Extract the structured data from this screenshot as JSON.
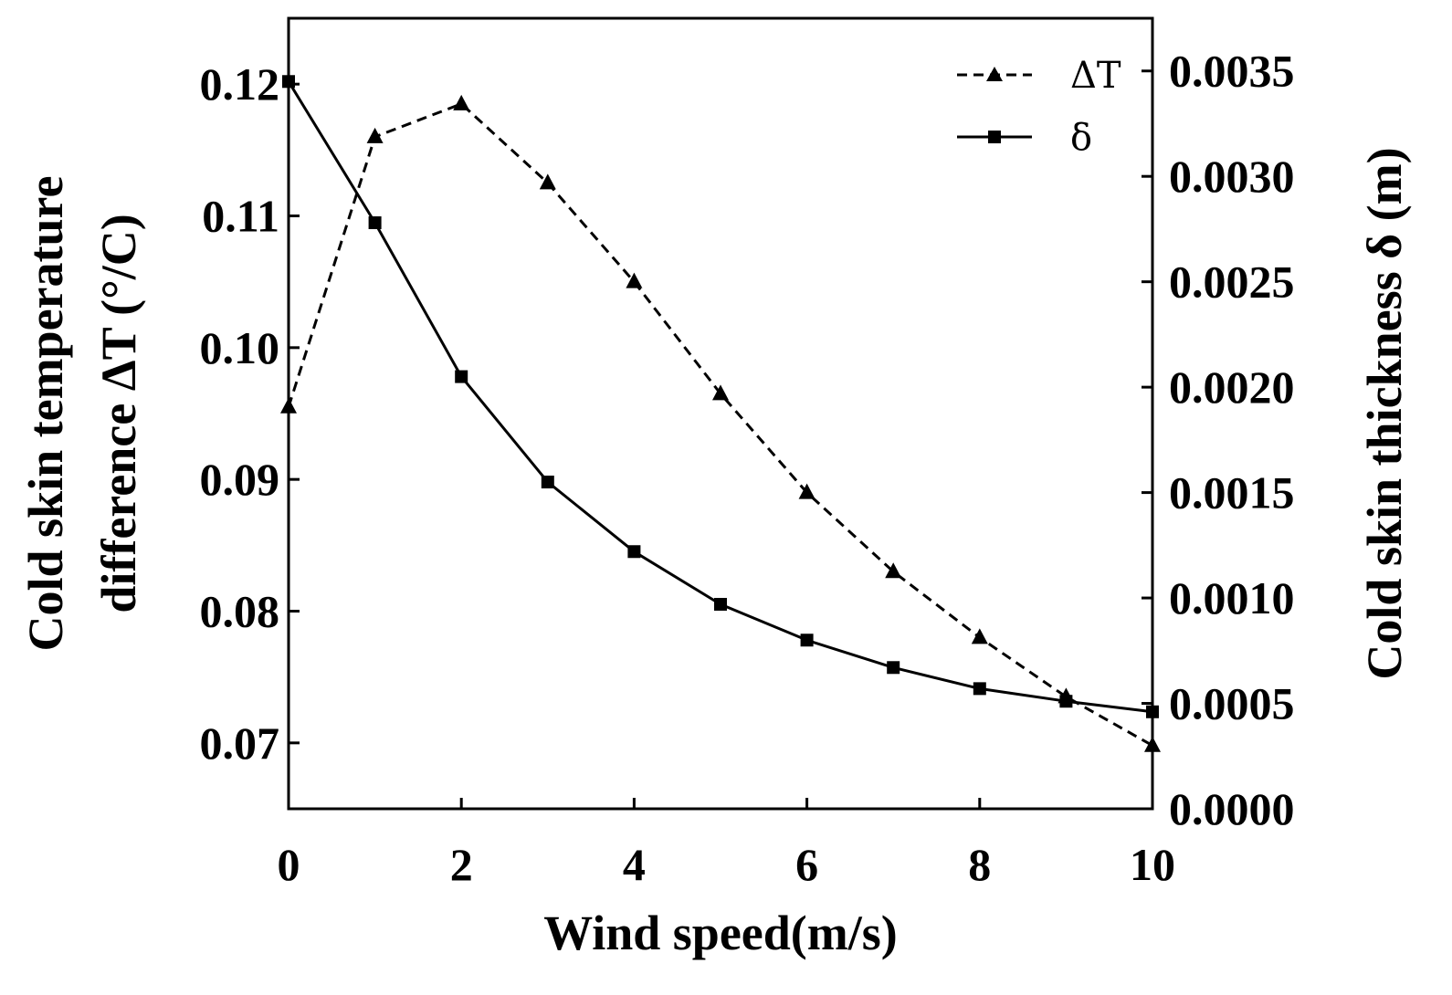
{
  "chart_data": {
    "type": "line",
    "x": [
      0,
      1,
      2,
      3,
      4,
      5,
      6,
      7,
      8,
      9,
      10
    ],
    "xlabel": "Wind speed(m/s)",
    "xlim": [
      0,
      10
    ],
    "xticks": [
      "0",
      "2",
      "4",
      "6",
      "8",
      "10"
    ],
    "ylabel_left_line1": "Cold skin temperature",
    "ylabel_left_line2": "difference  ΔT (°/C)",
    "ylim_left": [
      0.065,
      0.125
    ],
    "yticks_left": [
      "0.07",
      "0.08",
      "0.09",
      "0.10",
      "0.11",
      "0.12"
    ],
    "ylabel_right": "Cold skin thickness δ (m)",
    "ylim_right": [
      0.0,
      0.00375
    ],
    "yticks_right": [
      "0.0000",
      "0.0005",
      "0.0010",
      "0.0015",
      "0.0020",
      "0.0025",
      "0.0030",
      "0.0035"
    ],
    "legend_position": "top-right",
    "grid": false,
    "series": [
      {
        "name": "ΔT",
        "axis": "left",
        "style": "dashed",
        "marker": "triangle",
        "values": [
          0.0955,
          0.116,
          0.1185,
          0.1125,
          0.105,
          0.0965,
          0.089,
          0.083,
          0.078,
          0.0735,
          0.0698
        ]
      },
      {
        "name": "δ",
        "axis": "right",
        "style": "solid",
        "marker": "square",
        "values": [
          0.00345,
          0.00278,
          0.00205,
          0.00155,
          0.00122,
          0.00097,
          0.0008,
          0.00067,
          0.00057,
          0.00051,
          0.00046
        ]
      }
    ]
  }
}
